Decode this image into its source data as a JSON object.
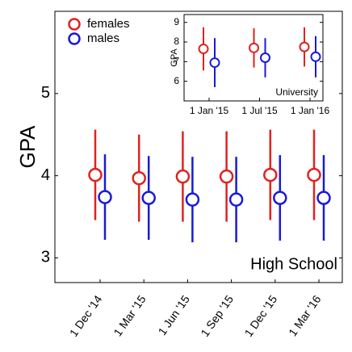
{
  "chart_data": [
    {
      "type": "errorbar",
      "ylabel": "GPA",
      "annotation": "High School",
      "categories": [
        "1 Dec '14",
        "1 Mar '15",
        "1 Jun '15",
        "1 Sep '15",
        "1 Dec '15",
        "1 Mar '16"
      ],
      "series": [
        {
          "name": "females",
          "color": "#e0221f",
          "values": [
            4.01,
            3.97,
            3.99,
            3.99,
            4.01,
            4.01
          ],
          "errors": [
            0.55,
            0.53,
            0.55,
            0.55,
            0.55,
            0.55
          ]
        },
        {
          "name": "males",
          "color": "#1a1ad8",
          "values": [
            3.74,
            3.73,
            3.71,
            3.71,
            3.73,
            3.73
          ],
          "errors": [
            0.52,
            0.51,
            0.52,
            0.52,
            0.52,
            0.52
          ]
        }
      ],
      "ylim": [
        2.7,
        6
      ],
      "yticks": [
        3,
        4,
        5
      ],
      "legend": "upper left"
    },
    {
      "type": "errorbar",
      "ylabel": "GPA",
      "annotation": "University",
      "categories": [
        "1 Jan '15",
        "1 Jul '15",
        "1 Jan '16"
      ],
      "series": [
        {
          "name": "females",
          "color": "#e0221f",
          "values": [
            7.65,
            7.7,
            7.75
          ],
          "errors": [
            1.1,
            1.0,
            1.0
          ]
        },
        {
          "name": "males",
          "color": "#1a1ad8",
          "values": [
            6.95,
            7.2,
            7.25
          ],
          "errors": [
            1.25,
            1.0,
            1.05
          ]
        }
      ],
      "ylim": [
        5,
        9.4
      ],
      "yticks": [
        6,
        7,
        8,
        9
      ]
    }
  ]
}
